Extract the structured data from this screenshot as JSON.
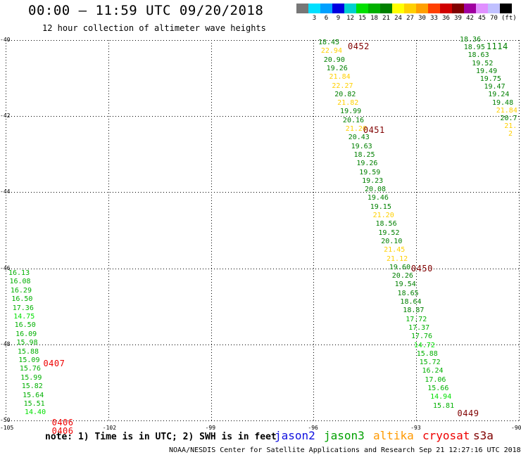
{
  "title": "00:00 – 11:59 UTC 09/20/2018",
  "subtitle": "12 hour collection of altimeter wave heights",
  "scale": {
    "unit": "(ft)",
    "items": [
      {
        "color": "#777777",
        "label": ""
      },
      {
        "color": "#00e0ff",
        "label": "3"
      },
      {
        "color": "#00a0ff",
        "label": "6"
      },
      {
        "color": "#0000e0",
        "label": "9"
      },
      {
        "color": "#00d0d0",
        "label": "12"
      },
      {
        "color": "#00e000",
        "label": "15"
      },
      {
        "color": "#00b000",
        "label": "18"
      },
      {
        "color": "#008000",
        "label": "21"
      },
      {
        "color": "#ffff00",
        "label": "24"
      },
      {
        "color": "#ffd000",
        "label": "27"
      },
      {
        "color": "#ffa000",
        "label": "30"
      },
      {
        "color": "#ff4000",
        "label": "33"
      },
      {
        "color": "#d00000",
        "label": "36"
      },
      {
        "color": "#800000",
        "label": "39"
      },
      {
        "color": "#a000a0",
        "label": "42"
      },
      {
        "color": "#e090ff",
        "label": "45"
      },
      {
        "color": "#c0c0ff",
        "label": "70"
      },
      {
        "color": "#000000",
        "label": ""
      }
    ]
  },
  "lat_labels": [
    "-40",
    "-42",
    "-44",
    "-46",
    "-48",
    "-50"
  ],
  "lon_labels": [
    "-105",
    "-102",
    "-99",
    "-96",
    "-93",
    "-90"
  ],
  "note": "note: 1) Time is in UTC; 2) SWH is in feet",
  "satellites": [
    {
      "name": "jason2",
      "color": "#1010e0"
    },
    {
      "name": "jason3",
      "color": "#00a000"
    },
    {
      "name": "altika",
      "color": "#ff9900"
    },
    {
      "name": "cryosat",
      "color": "#ee0000"
    },
    {
      "name": "s3a",
      "color": "#800000"
    }
  ],
  "credit": "NOAA/NESDIS Center for Satellite Applications and Research   Sep 21 12:27:16 UTC 2018",
  "colors": {
    "dark_green": "#008000",
    "green": "#00b000",
    "light_green": "#00e000",
    "yellow": "#ffd000",
    "red": "#ee0000",
    "maroon": "#800000"
  },
  "tracks": [
    {
      "name": "track-0452",
      "times": [
        {
          "label": "0452",
          "lon": -95.0,
          "lat": -40.05,
          "color": "maroon"
        },
        {
          "label": "0451",
          "lon": -94.55,
          "lat": -42.25,
          "color": "maroon"
        },
        {
          "label": "0450",
          "lon": -93.15,
          "lat": -45.9,
          "color": "maroon"
        },
        {
          "label": "0449",
          "lon": -91.8,
          "lat": -49.7,
          "color": "maroon"
        }
      ],
      "values": [
        {
          "v": "18.45",
          "c": "dark_green"
        },
        {
          "v": "22.94",
          "c": "yellow"
        },
        {
          "v": "20.90",
          "c": "dark_green"
        },
        {
          "v": "19.26",
          "c": "dark_green"
        },
        {
          "v": "21.84",
          "c": "yellow"
        },
        {
          "v": "22.27",
          "c": "yellow"
        },
        {
          "v": "20.82",
          "c": "dark_green"
        },
        {
          "v": "21.82",
          "c": "yellow"
        },
        {
          "v": "19.99",
          "c": "dark_green"
        },
        {
          "v": "20.16",
          "c": "dark_green"
        },
        {
          "v": "21.20",
          "c": "yellow"
        },
        {
          "v": "20.43",
          "c": "dark_green"
        },
        {
          "v": "19.63",
          "c": "dark_green"
        },
        {
          "v": "18.25",
          "c": "dark_green"
        },
        {
          "v": "19.26",
          "c": "dark_green"
        },
        {
          "v": "19.59",
          "c": "dark_green"
        },
        {
          "v": "19.23",
          "c": "dark_green"
        },
        {
          "v": "20.08",
          "c": "dark_green"
        },
        {
          "v": "19.46",
          "c": "dark_green"
        },
        {
          "v": "19.15",
          "c": "dark_green"
        },
        {
          "v": "21.20",
          "c": "yellow"
        },
        {
          "v": "18.56",
          "c": "dark_green"
        },
        {
          "v": "19.52",
          "c": "dark_green"
        },
        {
          "v": "20.10",
          "c": "dark_green"
        },
        {
          "v": "21.45",
          "c": "yellow"
        },
        {
          "v": "21.12",
          "c": "yellow"
        },
        {
          "v": "19.60",
          "c": "dark_green"
        },
        {
          "v": "20.26",
          "c": "dark_green"
        },
        {
          "v": "19.54",
          "c": "dark_green"
        },
        {
          "v": "18.65",
          "c": "dark_green"
        },
        {
          "v": "18.64",
          "c": "dark_green"
        },
        {
          "v": "18.87",
          "c": "dark_green"
        },
        {
          "v": "17.72",
          "c": "green"
        },
        {
          "v": "17.37",
          "c": "green"
        },
        {
          "v": "17.76",
          "c": "green"
        },
        {
          "v": "14.72",
          "c": "light_green"
        },
        {
          "v": "15.88",
          "c": "green"
        },
        {
          "v": "15.72",
          "c": "green"
        },
        {
          "v": "16.24",
          "c": "green"
        },
        {
          "v": "17.06",
          "c": "green"
        },
        {
          "v": "15.66",
          "c": "green"
        },
        {
          "v": "14.94",
          "c": "light_green"
        },
        {
          "v": "15.81",
          "c": "green"
        }
      ]
    },
    {
      "name": "track-1114",
      "times": [
        {
          "label": "1114",
          "lon": -90.95,
          "lat": -40.05,
          "color": "dark_green"
        }
      ],
      "values": [
        {
          "v": "18.36",
          "c": "dark_green"
        },
        {
          "v": "18.95",
          "c": "dark_green"
        },
        {
          "v": "18.63",
          "c": "dark_green"
        },
        {
          "v": "19.52",
          "c": "dark_green"
        },
        {
          "v": "19.49",
          "c": "dark_green"
        },
        {
          "v": "19.75",
          "c": "dark_green"
        },
        {
          "v": "19.47",
          "c": "dark_green"
        },
        {
          "v": "19.24",
          "c": "dark_green"
        },
        {
          "v": "19.48",
          "c": "dark_green"
        },
        {
          "v": "21.84",
          "c": "yellow"
        },
        {
          "v": "20.7",
          "c": "dark_green"
        },
        {
          "v": "21.",
          "c": "yellow"
        },
        {
          "v": "2",
          "c": "yellow"
        }
      ]
    },
    {
      "name": "track-0407",
      "times": [
        {
          "label": "0407",
          "lon": -103.9,
          "lat": -48.4,
          "color": "red"
        },
        {
          "label": "0406",
          "lon": -103.65,
          "lat": -49.95,
          "color": "red"
        },
        {
          "label": "0406",
          "lon": -103.65,
          "lat": -50.17,
          "color": "red"
        }
      ],
      "values": [
        {
          "v": "16.13",
          "c": "green"
        },
        {
          "v": "16.08",
          "c": "green"
        },
        {
          "v": "16.29",
          "c": "green"
        },
        {
          "v": "16.50",
          "c": "green"
        },
        {
          "v": "17.36",
          "c": "green"
        },
        {
          "v": "14.75",
          "c": "light_green"
        },
        {
          "v": "16.50",
          "c": "green"
        },
        {
          "v": "16.09",
          "c": "green"
        },
        {
          "v": "15.98",
          "c": "green"
        },
        {
          "v": "15.88",
          "c": "green"
        },
        {
          "v": "15.09",
          "c": "green"
        },
        {
          "v": "15.76",
          "c": "green"
        },
        {
          "v": "15.99",
          "c": "green"
        },
        {
          "v": "15.82",
          "c": "green"
        },
        {
          "v": "15.64",
          "c": "green"
        },
        {
          "v": "15.51",
          "c": "green"
        },
        {
          "v": "14.40",
          "c": "light_green"
        }
      ]
    }
  ]
}
